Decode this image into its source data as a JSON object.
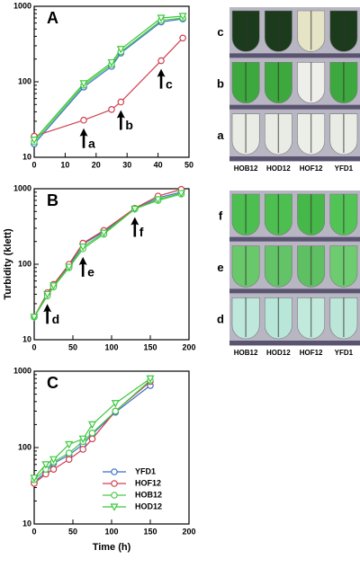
{
  "chart_data": [
    {
      "type": "line",
      "title": "A",
      "log_y": true,
      "x": [
        0,
        16,
        25,
        28,
        41,
        48
      ],
      "series": [
        {
          "name": "YFD1",
          "color": "#3a6fc4",
          "marker": "circle",
          "values": [
            15,
            85,
            160,
            240,
            620,
            680
          ]
        },
        {
          "name": "HOF12",
          "color": "#d04050",
          "marker": "circle",
          "values": [
            19,
            31,
            43,
            54,
            190,
            380
          ]
        },
        {
          "name": "HOB12",
          "color": "#4cc84c",
          "marker": "circle",
          "values": [
            16,
            90,
            170,
            250,
            650,
            700
          ]
        },
        {
          "name": "HOD12",
          "color": "#3cc83c",
          "marker": "triangle",
          "values": [
            17,
            95,
            180,
            270,
            700,
            740
          ]
        }
      ],
      "xlim": [
        0,
        50
      ],
      "xticks": [
        0,
        10,
        20,
        30,
        40,
        50
      ],
      "ylim": [
        10,
        1000
      ],
      "yticks": [
        10,
        100,
        1000
      ],
      "annotations": [
        {
          "label": "a",
          "x": 16
        },
        {
          "label": "b",
          "x": 28
        },
        {
          "label": "c",
          "x": 41
        }
      ]
    },
    {
      "type": "line",
      "title": "B",
      "log_y": true,
      "ylabel": "Turbidity (klett)",
      "x": [
        0,
        17,
        25,
        45,
        63,
        90,
        130,
        160,
        190
      ],
      "series": [
        {
          "name": "YFD1",
          "color": "#3a6fc4",
          "marker": "circle",
          "values": [
            20,
            40,
            52,
            95,
            185,
            270,
            540,
            760,
            900
          ]
        },
        {
          "name": "HOF12",
          "color": "#d04050",
          "marker": "circle",
          "values": [
            20,
            42,
            54,
            100,
            190,
            280,
            550,
            800,
            980
          ]
        },
        {
          "name": "HOB12",
          "color": "#4cc84c",
          "marker": "circle",
          "values": [
            20,
            38,
            50,
            90,
            160,
            250,
            540,
            700,
            850
          ]
        },
        {
          "name": "HOD12",
          "color": "#3cc83c",
          "marker": "triangle",
          "values": [
            20,
            40,
            52,
            92,
            170,
            260,
            540,
            720,
            870
          ]
        }
      ],
      "xlim": [
        0,
        200
      ],
      "xticks": [
        0,
        50,
        100,
        150,
        200
      ],
      "ylim": [
        10,
        1000
      ],
      "yticks": [
        10,
        100,
        1000
      ],
      "annotations": [
        {
          "label": "d",
          "x": 17
        },
        {
          "label": "e",
          "x": 63
        },
        {
          "label": "f",
          "x": 130
        }
      ]
    },
    {
      "type": "line",
      "title": "C",
      "log_y": true,
      "xlabel": "Time (h)",
      "legend": "lower-right",
      "x": [
        0,
        15,
        25,
        45,
        63,
        75,
        105,
        150
      ],
      "series": [
        {
          "name": "YFD1",
          "color": "#3a6fc4",
          "marker": "circle",
          "values": [
            35,
            48,
            62,
            80,
            110,
            150,
            290,
            650
          ]
        },
        {
          "name": "HOF12",
          "color": "#d04050",
          "marker": "circle",
          "values": [
            34,
            45,
            52,
            70,
            95,
            130,
            300,
            730
          ]
        },
        {
          "name": "HOB12",
          "color": "#4cc84c",
          "marker": "circle",
          "values": [
            38,
            52,
            65,
            85,
            120,
            155,
            300,
            760
          ]
        },
        {
          "name": "HOD12",
          "color": "#3cc83c",
          "marker": "triangle",
          "values": [
            40,
            60,
            70,
            110,
            130,
            200,
            380,
            800
          ]
        }
      ],
      "xlim": [
        0,
        200
      ],
      "xticks": [
        0,
        50,
        100,
        150,
        200
      ],
      "ylim": [
        10,
        1000
      ],
      "yticks": [
        10,
        100,
        1000
      ]
    }
  ],
  "photos": [
    {
      "rows": [
        "c",
        "b",
        "a"
      ],
      "columns": [
        "HOB12",
        "HOD12",
        "HOF12",
        "YFD1"
      ]
    },
    {
      "rows": [
        "f",
        "e",
        "d"
      ],
      "columns": [
        "HOB12",
        "HOD12",
        "HOF12",
        "YFD1"
      ]
    }
  ]
}
